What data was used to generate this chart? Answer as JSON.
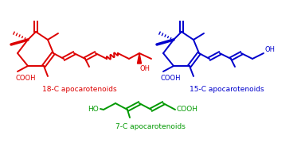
{
  "bg_color": "#ffffff",
  "label_18c": "18-C apocarotenoids",
  "label_15c": "15-C apocarotenoids",
  "label_7c": "7-C apocarotenoids",
  "color_red": "#dd0000",
  "color_blue": "#0000cc",
  "color_green": "#009900",
  "figsize": [
    3.78,
    1.8
  ],
  "dpi": 100
}
